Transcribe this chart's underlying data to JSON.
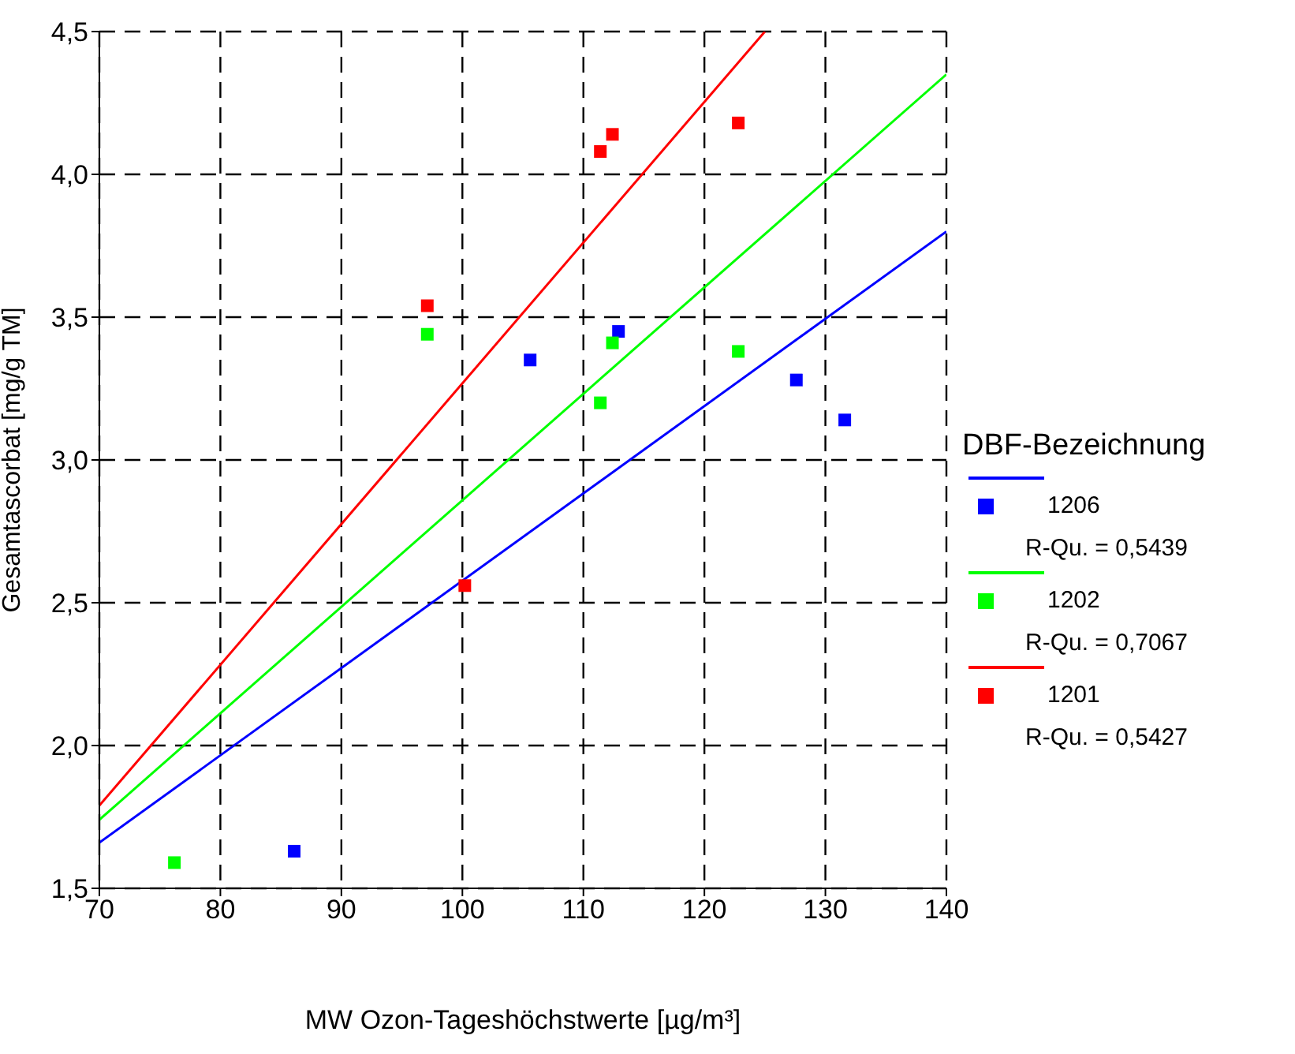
{
  "chart_data": {
    "type": "scatter",
    "xlabel": "MW Ozon-Tageshöchstwerte [µg/m³]",
    "ylabel": "Gesamtascorbat [mg/g TM]",
    "legend_title": "DBF-Bezeichnung",
    "legend": "right",
    "grid": true,
    "xlim": [
      70,
      140
    ],
    "xticks": [
      70,
      80,
      90,
      100,
      110,
      120,
      130,
      140
    ],
    "ylim": [
      1.5,
      4.5
    ],
    "yticks": [
      {
        "value": 1.5,
        "label": "1,5"
      },
      {
        "value": 2,
        "label": "2,0"
      },
      {
        "value": 2.5,
        "label": "2,5"
      },
      {
        "value": 3,
        "label": "3,0"
      },
      {
        "value": 3.5,
        "label": "3,5"
      },
      {
        "value": 4,
        "label": "4,0"
      },
      {
        "value": 4.5,
        "label": "4,5"
      }
    ],
    "annotations": [
      "R-Qu. = 0,5439",
      "R-Qu. = 0,7067",
      "R-Qu. = 0,5427"
    ],
    "series": [
      {
        "name": "1206",
        "marker": "square",
        "color": "#0000ff",
        "x": [
          86.1,
          105.6,
          112.9,
          127.6,
          131.6
        ],
        "values": [
          1.63,
          3.35,
          3.45,
          3.28,
          3.14
        ]
      },
      {
        "type": "line",
        "color": "#0000ff",
        "x": [
          70,
          140
        ],
        "values": [
          1.66,
          3.8
        ]
      },
      {
        "name": "1202",
        "marker": "square",
        "color": "#00ff00",
        "x": [
          76.2,
          97.1,
          111.4,
          112.4,
          122.8
        ],
        "values": [
          1.59,
          3.44,
          3.2,
          3.41,
          3.38
        ]
      },
      {
        "type": "line",
        "color": "#00ff00",
        "x": [
          70,
          140
        ],
        "values": [
          1.74,
          4.35
        ]
      },
      {
        "name": "1201",
        "marker": "square",
        "color": "#ff0000",
        "x": [
          97.1,
          100.2,
          111.4,
          112.4,
          122.8
        ],
        "values": [
          3.54,
          2.56,
          4.08,
          4.14,
          4.18
        ]
      },
      {
        "type": "line",
        "color": "#ff0000",
        "x": [
          70,
          125
        ],
        "values": [
          1.79,
          4.5
        ]
      }
    ]
  }
}
